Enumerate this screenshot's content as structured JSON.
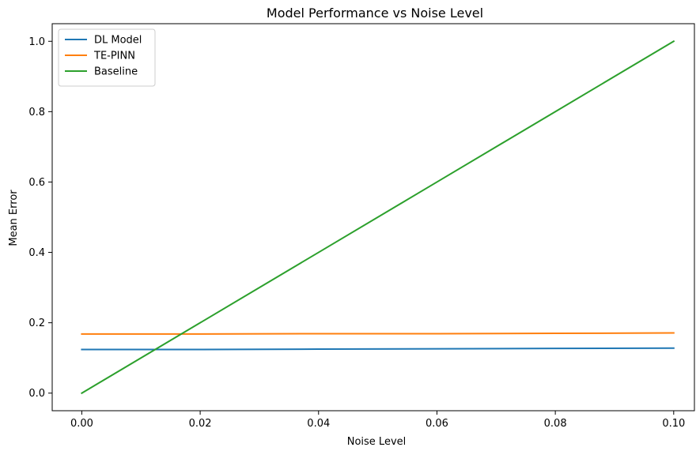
{
  "chart_data": {
    "type": "line",
    "title": "Model Performance vs Noise Level",
    "xlabel": "Noise Level",
    "ylabel": "Mean Error",
    "xlim": [
      -0.005,
      0.1035
    ],
    "ylim": [
      -0.05,
      1.05
    ],
    "xticks": [
      0.0,
      0.02,
      0.04,
      0.06,
      0.08,
      0.1
    ],
    "xtick_labels": [
      "0.00",
      "0.02",
      "0.04",
      "0.06",
      "0.08",
      "0.10"
    ],
    "yticks": [
      0.0,
      0.2,
      0.4,
      0.6,
      0.8,
      1.0
    ],
    "ytick_labels": [
      "0.0",
      "0.2",
      "0.4",
      "0.6",
      "0.8",
      "1.0"
    ],
    "grid": false,
    "legend_position": "top-left",
    "x": [
      0.0,
      0.02,
      0.04,
      0.06,
      0.08,
      0.1
    ],
    "series": [
      {
        "name": "DL Model",
        "color": "#1f77b4",
        "values": [
          0.124,
          0.124,
          0.125,
          0.126,
          0.127,
          0.128
        ]
      },
      {
        "name": "TE-PINN",
        "color": "#ff7f0e",
        "values": [
          0.168,
          0.168,
          0.169,
          0.169,
          0.17,
          0.171
        ]
      },
      {
        "name": "Baseline",
        "color": "#2ca02c",
        "values": [
          0.0,
          0.2,
          0.4,
          0.6,
          0.8,
          1.0
        ]
      }
    ]
  }
}
